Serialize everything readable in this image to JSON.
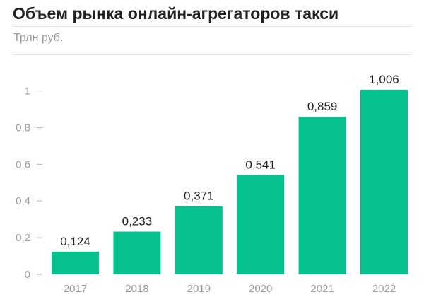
{
  "title": "Объем рынка онлайн-агрегаторов такси",
  "units": "Трлн руб.",
  "colors": {
    "bar": "#05C18D",
    "axis_text": "#9a9a9a",
    "text": "#222222"
  },
  "chart_data": {
    "type": "bar",
    "title": "Объем рынка онлайн-агрегаторов такси",
    "ylabel": "Трлн руб.",
    "xlabel": "",
    "categories": [
      "2017",
      "2018",
      "2019",
      "2020",
      "2021",
      "2022"
    ],
    "values": [
      0.124,
      0.233,
      0.371,
      0.541,
      0.859,
      1.006
    ],
    "value_labels": [
      "0,124",
      "0,233",
      "0,371",
      "0,541",
      "0,859",
      "1,006"
    ],
    "ylim": [
      0,
      1.006
    ],
    "yticks": [
      0,
      0.2,
      0.4,
      0.6,
      0.8,
      1
    ],
    "ytick_labels": [
      "0",
      "0,2",
      "0,4",
      "0,6",
      "0,8",
      "1"
    ],
    "grid": false,
    "legend": "none"
  }
}
